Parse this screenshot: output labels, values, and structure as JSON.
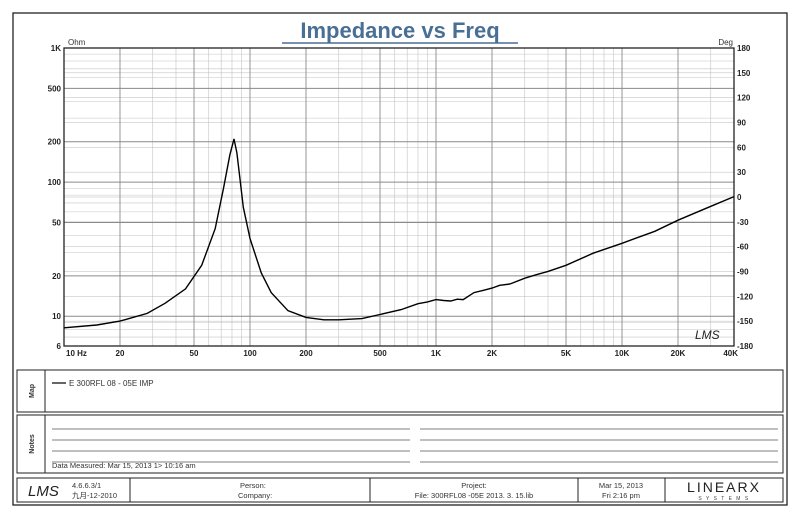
{
  "chart_data": {
    "type": "line",
    "title": "Impedance vs Freq",
    "x_scale": "log",
    "y_scale": "log",
    "xlim": [
      10,
      40000
    ],
    "ylim": [
      6,
      1000
    ],
    "y2lim": [
      -180,
      180
    ],
    "y_unit": "Ohm",
    "y2_unit": "Deg",
    "grid": true,
    "x_ticks": [
      {
        "v": 10,
        "label": "10 Hz"
      },
      {
        "v": 20,
        "label": "20"
      },
      {
        "v": 50,
        "label": "50"
      },
      {
        "v": 100,
        "label": "100"
      },
      {
        "v": 200,
        "label": "200"
      },
      {
        "v": 500,
        "label": "500"
      },
      {
        "v": 1000,
        "label": "1K"
      },
      {
        "v": 2000,
        "label": "2K"
      },
      {
        "v": 5000,
        "label": "5K"
      },
      {
        "v": 10000,
        "label": "10K"
      },
      {
        "v": 20000,
        "label": "20K"
      },
      {
        "v": 40000,
        "label": "40K"
      }
    ],
    "y_ticks": [
      {
        "v": 1000,
        "label": "1K"
      },
      {
        "v": 500,
        "label": "500"
      },
      {
        "v": 200,
        "label": "200"
      },
      {
        "v": 100,
        "label": "100"
      },
      {
        "v": 50,
        "label": "50"
      },
      {
        "v": 20,
        "label": "20"
      },
      {
        "v": 10,
        "label": "10"
      },
      {
        "v": 6,
        "label": "6"
      }
    ],
    "y2_ticks": [
      {
        "v": 180,
        "label": "180"
      },
      {
        "v": 150,
        "label": "150"
      },
      {
        "v": 120,
        "label": "120"
      },
      {
        "v": 90,
        "label": "90"
      },
      {
        "v": 60,
        "label": "60"
      },
      {
        "v": 30,
        "label": "30"
      },
      {
        "v": 0,
        "label": "0"
      },
      {
        "v": -30,
        "label": "-30"
      },
      {
        "v": -60,
        "label": "-60"
      },
      {
        "v": -90,
        "label": "-90"
      },
      {
        "v": -120,
        "label": "-120"
      },
      {
        "v": -150,
        "label": "-150"
      },
      {
        "v": -180,
        "label": "-180"
      }
    ],
    "series": [
      {
        "name": "E 300RFL 08 - 05E IMP",
        "x": [
          10,
          15,
          20,
          28,
          35,
          45,
          55,
          65,
          72,
          78,
          82,
          85,
          88,
          92,
          100,
          115,
          130,
          160,
          200,
          250,
          300,
          400,
          500,
          650,
          800,
          900,
          1000,
          1100,
          1200,
          1300,
          1400,
          1600,
          1800,
          2000,
          2200,
          2500,
          3000,
          3500,
          4000,
          5000,
          7000,
          10000,
          15000,
          20000,
          30000,
          40000
        ],
        "values": [
          8.2,
          8.6,
          9.2,
          10.5,
          12.5,
          16,
          24,
          45,
          90,
          160,
          210,
          165,
          110,
          65,
          38,
          21,
          15,
          11,
          9.8,
          9.4,
          9.4,
          9.6,
          10.3,
          11.2,
          12.4,
          12.8,
          13.3,
          13.1,
          13.0,
          13.4,
          13.3,
          15.0,
          15.6,
          16.2,
          17.0,
          17.4,
          19.2,
          20.5,
          21.6,
          24,
          29.5,
          35,
          43,
          52,
          66,
          78
        ]
      }
    ],
    "legend": [
      "E 300RFL 08 - 05E IMP"
    ],
    "watermark": "LMS"
  },
  "map_label": "Map",
  "notes_label": "Notes",
  "notes_data_line": "Data Measured: Mar 15, 2013  1> 10:16 am",
  "footer": {
    "logo": "LMS",
    "version": "4.6.6.3/1",
    "date_code": "九月-12-2010",
    "person_label": "Person:",
    "company_label": "Company:",
    "project_label": "Project:",
    "file_line": "File: 300RFL08 -05E 2013. 3. 15.lib",
    "date": "Mar 15, 2013",
    "time": "Fri  2:16 pm",
    "brand": "LINEARX",
    "brand_sub": "S Y S T E M S"
  }
}
